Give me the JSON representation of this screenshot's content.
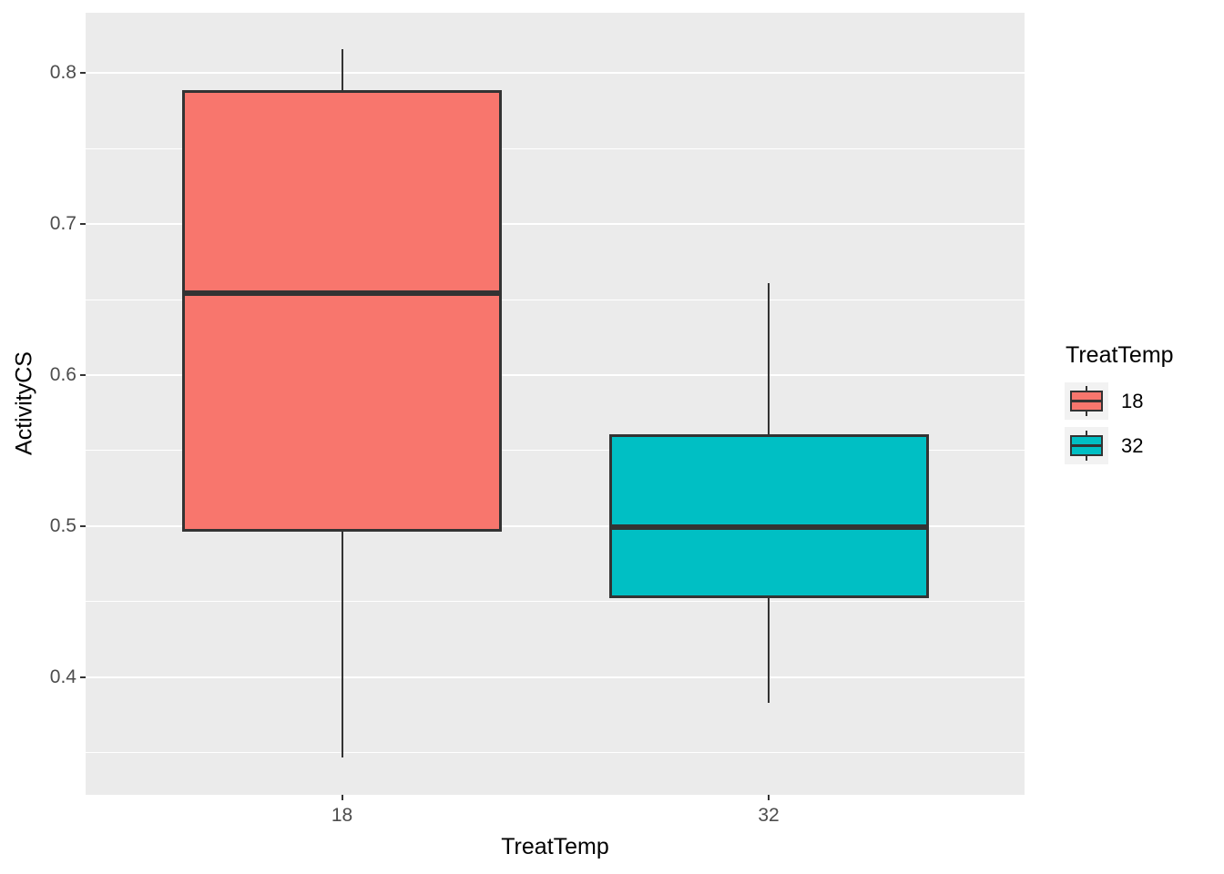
{
  "chart_data": {
    "type": "boxplot",
    "title": "",
    "xlabel": "TreatTemp",
    "ylabel": "ActivityCS",
    "categories": [
      "18",
      "32"
    ],
    "series": [
      {
        "name": "18",
        "color": "#F8766D",
        "whisker_low": 0.347,
        "q1": 0.496,
        "median": 0.654,
        "q3": 0.789,
        "whisker_high": 0.816
      },
      {
        "name": "32",
        "color": "#00BFC4",
        "whisker_low": 0.383,
        "q1": 0.452,
        "median": 0.499,
        "q3": 0.561,
        "whisker_high": 0.661
      }
    ],
    "y_ticks": [
      0.4,
      0.5,
      0.6,
      0.7,
      0.8
    ],
    "y_minor_ticks": [
      0.35,
      0.45,
      0.55,
      0.65,
      0.75
    ],
    "ylim": [
      0.322,
      0.84
    ],
    "grid": "major-and-minor",
    "legend": {
      "title": "TreatTemp",
      "position": "right",
      "entries": [
        {
          "label": "18",
          "color": "#F8766D"
        },
        {
          "label": "32",
          "color": "#00BFC4"
        }
      ]
    },
    "colors": {
      "panel_background": "#EBEBEB",
      "gridline": "#FFFFFF",
      "box_outline": "#333333",
      "tick_label_text": "#4D4D4D",
      "axis_title_text": "#000000",
      "legend_key_background": "#F2F2F2"
    }
  }
}
